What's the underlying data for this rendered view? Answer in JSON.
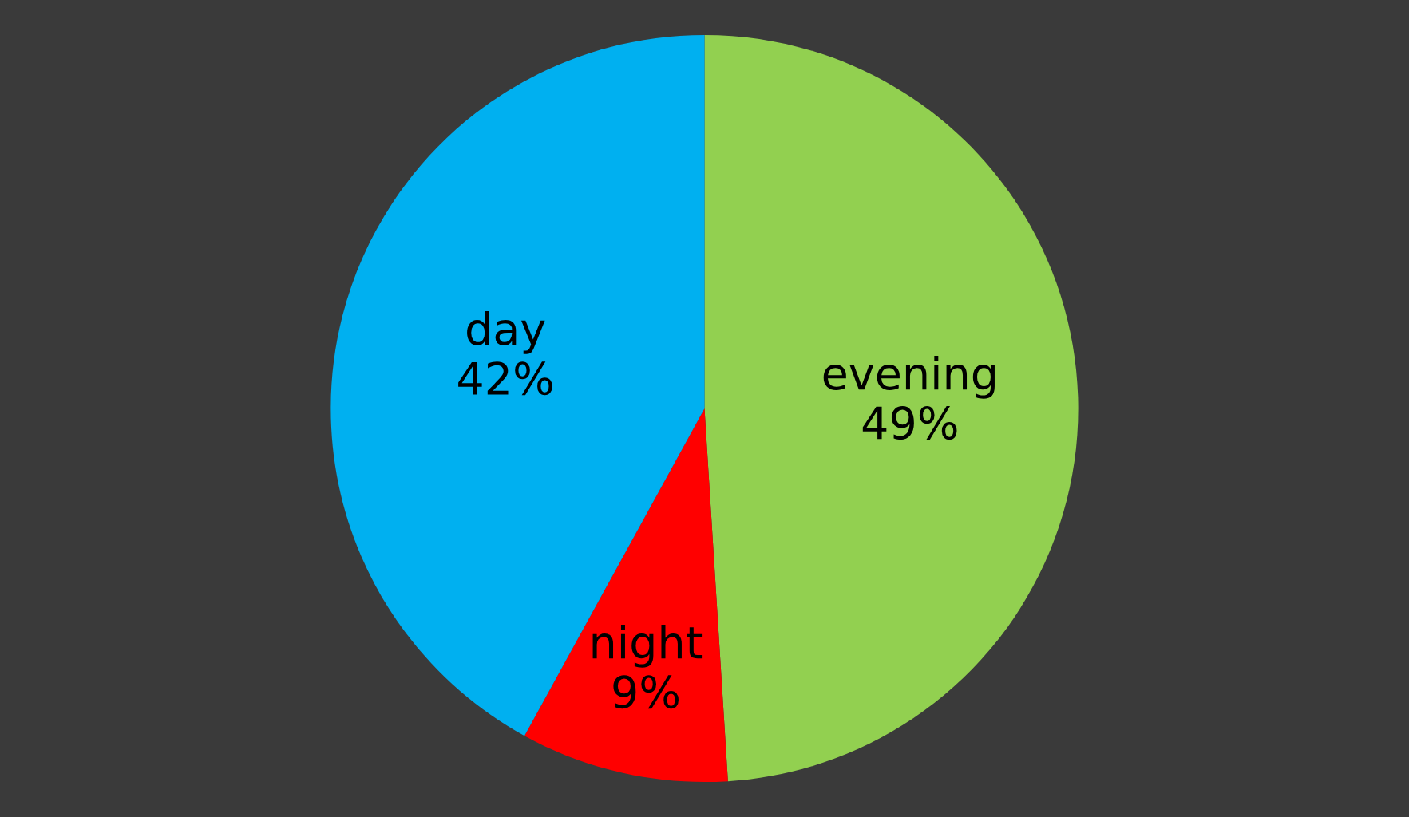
{
  "chart_data": {
    "type": "pie",
    "categories": [
      "evening",
      "night",
      "day"
    ],
    "values": [
      49,
      9,
      42
    ],
    "value_labels": [
      "49%",
      "9%",
      "42%"
    ],
    "colors": [
      "#92d050",
      "#ff0000",
      "#00b0f0"
    ]
  }
}
